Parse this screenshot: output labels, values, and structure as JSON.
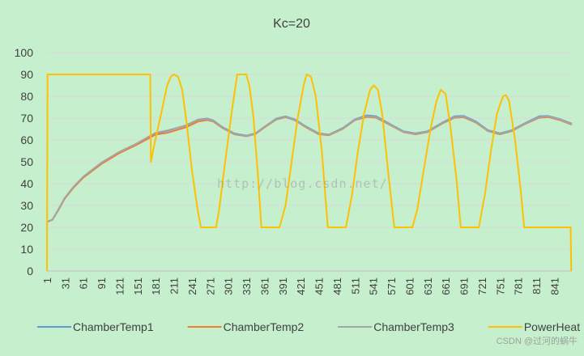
{
  "chart_data": {
    "type": "line",
    "title": "Kc=20",
    "xlabel": "",
    "ylabel": "",
    "ylim": [
      0,
      100
    ],
    "yticks": [
      0,
      10,
      20,
      30,
      40,
      50,
      60,
      70,
      80,
      90,
      100
    ],
    "xlim": [
      1,
      870
    ],
    "xticks": [
      1,
      31,
      61,
      91,
      121,
      151,
      181,
      211,
      241,
      271,
      301,
      331,
      361,
      391,
      421,
      451,
      481,
      511,
      541,
      571,
      601,
      631,
      661,
      691,
      721,
      751,
      781,
      811,
      841
    ],
    "grid": "horizontal",
    "legend": "bottom",
    "series": [
      {
        "name": "ChamberTemp1",
        "color": "#5b9bd5",
        "points": [
          [
            1,
            22.5
          ],
          [
            10,
            23.5
          ],
          [
            20,
            28
          ],
          [
            30,
            33
          ],
          [
            45,
            38.5
          ],
          [
            61,
            43
          ],
          [
            91,
            49.5
          ],
          [
            121,
            54.5
          ],
          [
            151,
            58.5
          ],
          [
            171,
            61.5
          ],
          [
            181,
            63
          ],
          [
            201,
            64.2
          ],
          [
            231,
            66.7
          ],
          [
            251,
            69.3
          ],
          [
            266,
            69.8
          ],
          [
            276,
            69
          ],
          [
            291,
            66
          ],
          [
            311,
            63
          ],
          [
            331,
            62
          ],
          [
            346,
            63
          ],
          [
            361,
            66
          ],
          [
            381,
            69.8
          ],
          [
            396,
            70.8
          ],
          [
            411,
            69.5
          ],
          [
            431,
            66
          ],
          [
            451,
            63
          ],
          [
            468,
            62.5
          ],
          [
            491,
            65.5
          ],
          [
            511,
            69.5
          ],
          [
            531,
            71.3
          ],
          [
            546,
            70.8
          ],
          [
            571,
            67
          ],
          [
            591,
            64
          ],
          [
            611,
            63
          ],
          [
            631,
            64
          ],
          [
            656,
            68
          ],
          [
            676,
            70.8
          ],
          [
            691,
            71
          ],
          [
            711,
            68.5
          ],
          [
            731,
            64.5
          ],
          [
            751,
            63
          ],
          [
            771,
            64.5
          ],
          [
            791,
            67.5
          ],
          [
            816,
            70.8
          ],
          [
            831,
            71
          ],
          [
            851,
            69.5
          ],
          [
            870,
            67.5
          ]
        ]
      },
      {
        "name": "ChamberTemp2",
        "color": "#ed7d31",
        "points": [
          [
            1,
            22.5
          ],
          [
            10,
            23.5
          ],
          [
            20,
            28
          ],
          [
            30,
            33
          ],
          [
            45,
            38.2
          ],
          [
            61,
            42.7
          ],
          [
            91,
            49
          ],
          [
            121,
            54
          ],
          [
            151,
            58
          ],
          [
            171,
            61
          ],
          [
            181,
            62.5
          ],
          [
            201,
            63.3
          ],
          [
            231,
            65.8
          ],
          [
            251,
            68.4
          ],
          [
            266,
            69.1
          ],
          [
            276,
            68.5
          ],
          [
            291,
            65.6
          ],
          [
            311,
            62.6
          ],
          [
            331,
            61.7
          ],
          [
            346,
            62.7
          ],
          [
            361,
            65.7
          ],
          [
            381,
            69.4
          ],
          [
            396,
            70.4
          ],
          [
            411,
            69.1
          ],
          [
            431,
            65.6
          ],
          [
            451,
            62.6
          ],
          [
            468,
            62.2
          ],
          [
            491,
            65.1
          ],
          [
            511,
            69.1
          ],
          [
            531,
            70.6
          ],
          [
            546,
            70.2
          ],
          [
            571,
            66.6
          ],
          [
            591,
            63.6
          ],
          [
            611,
            62.6
          ],
          [
            631,
            63.6
          ],
          [
            656,
            67.6
          ],
          [
            676,
            70.2
          ],
          [
            691,
            70.4
          ],
          [
            711,
            68
          ],
          [
            731,
            64.1
          ],
          [
            751,
            62.6
          ],
          [
            771,
            64.1
          ],
          [
            791,
            67.1
          ],
          [
            816,
            70.2
          ],
          [
            831,
            70.5
          ],
          [
            851,
            69
          ],
          [
            870,
            67
          ]
        ]
      },
      {
        "name": "ChamberTemp3",
        "color": "#a5a5a5",
        "points": [
          [
            1,
            22.5
          ],
          [
            10,
            23.5
          ],
          [
            20,
            28.3
          ],
          [
            30,
            33.3
          ],
          [
            45,
            38.6
          ],
          [
            61,
            43.2
          ],
          [
            91,
            49.6
          ],
          [
            121,
            54.6
          ],
          [
            151,
            58.6
          ],
          [
            171,
            61.8
          ],
          [
            181,
            63.3
          ],
          [
            201,
            64.4
          ],
          [
            231,
            66.6
          ],
          [
            251,
            69.2
          ],
          [
            266,
            69.6
          ],
          [
            276,
            68.8
          ],
          [
            291,
            65.8
          ],
          [
            311,
            62.8
          ],
          [
            331,
            61.8
          ],
          [
            346,
            62.9
          ],
          [
            361,
            66
          ],
          [
            381,
            69.6
          ],
          [
            396,
            70.6
          ],
          [
            411,
            69.3
          ],
          [
            431,
            65.8
          ],
          [
            451,
            62.8
          ],
          [
            468,
            62.4
          ],
          [
            491,
            65.3
          ],
          [
            511,
            69.3
          ],
          [
            531,
            71
          ],
          [
            546,
            70.5
          ],
          [
            571,
            66.8
          ],
          [
            591,
            63.8
          ],
          [
            611,
            62.8
          ],
          [
            631,
            63.8
          ],
          [
            656,
            67.8
          ],
          [
            676,
            70.5
          ],
          [
            691,
            70.7
          ],
          [
            711,
            68.2
          ],
          [
            731,
            64.3
          ],
          [
            751,
            62.8
          ],
          [
            771,
            64.3
          ],
          [
            791,
            67.3
          ],
          [
            816,
            70.5
          ],
          [
            831,
            70.8
          ],
          [
            851,
            69.3
          ],
          [
            870,
            67.3
          ]
        ]
      },
      {
        "name": "PowerHeat",
        "color": "#ffc000",
        "points": [
          [
            1,
            0
          ],
          [
            2,
            90
          ],
          [
            172,
            90
          ],
          [
            173,
            50
          ],
          [
            178,
            57
          ],
          [
            190,
            72
          ],
          [
            200,
            85
          ],
          [
            206,
            89
          ],
          [
            211,
            90
          ],
          [
            218,
            89
          ],
          [
            225,
            83
          ],
          [
            233,
            66
          ],
          [
            241,
            46
          ],
          [
            251,
            27
          ],
          [
            256,
            20
          ],
          [
            281,
            20
          ],
          [
            286,
            28
          ],
          [
            296,
            50
          ],
          [
            308,
            75
          ],
          [
            316,
            90
          ],
          [
            331,
            90
          ],
          [
            336,
            85
          ],
          [
            343,
            70
          ],
          [
            350,
            45
          ],
          [
            356,
            20
          ],
          [
            386,
            20
          ],
          [
            396,
            30
          ],
          [
            406,
            50
          ],
          [
            416,
            70
          ],
          [
            426,
            85
          ],
          [
            431,
            90
          ],
          [
            438,
            89
          ],
          [
            446,
            80
          ],
          [
            456,
            55
          ],
          [
            466,
            20
          ],
          [
            496,
            20
          ],
          [
            506,
            35
          ],
          [
            516,
            55
          ],
          [
            526,
            72
          ],
          [
            536,
            83
          ],
          [
            542,
            85
          ],
          [
            549,
            83
          ],
          [
            556,
            72
          ],
          [
            566,
            45
          ],
          [
            576,
            20
          ],
          [
            606,
            20
          ],
          [
            614,
            28
          ],
          [
            624,
            45
          ],
          [
            636,
            65
          ],
          [
            646,
            78
          ],
          [
            653,
            83
          ],
          [
            661,
            81
          ],
          [
            669,
            66
          ],
          [
            679,
            42
          ],
          [
            686,
            20
          ],
          [
            716,
            20
          ],
          [
            726,
            35
          ],
          [
            736,
            55
          ],
          [
            746,
            72
          ],
          [
            756,
            80
          ],
          [
            761,
            80.5
          ],
          [
            766,
            78
          ],
          [
            776,
            60
          ],
          [
            786,
            35
          ],
          [
            791,
            20
          ],
          [
            868,
            20
          ],
          [
            869,
            0
          ]
        ]
      }
    ]
  },
  "watermark_text": "http://blog.csdn.net/",
  "credit_text": "CSDN @过河的蜗牛"
}
